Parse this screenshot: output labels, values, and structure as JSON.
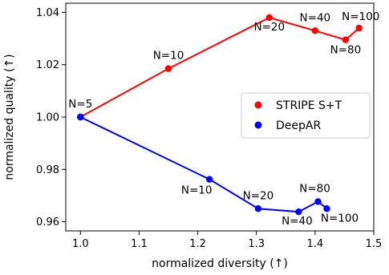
{
  "chart_data": {
    "type": "line",
    "xlabel": "normalized diversity (↑)",
    "ylabel": "normalized quality (↑)",
    "xlim": [
      0.975,
      1.5
    ],
    "ylim": [
      0.9565,
      1.0435
    ],
    "xticks": [
      1.0,
      1.1,
      1.2,
      1.3,
      1.4,
      1.5
    ],
    "xtick_labels": [
      "1.0",
      "1.1",
      "1.2",
      "1.3",
      "1.4",
      "1.5"
    ],
    "yticks": [
      0.96,
      0.98,
      1.0,
      1.02,
      1.04
    ],
    "ytick_labels": [
      "0.96",
      "0.98",
      "1.00",
      "1.02",
      "1.04"
    ],
    "grid": false,
    "legend_position": "center-right",
    "series": [
      {
        "name": "STRIPE S+T",
        "color": "#ff0000",
        "points": [
          {
            "x": 1.0,
            "y": 1.0,
            "label": "N=5"
          },
          {
            "x": 1.15,
            "y": 1.0185,
            "label": "N=10"
          },
          {
            "x": 1.322,
            "y": 1.038,
            "label": "N=20"
          },
          {
            "x": 1.4,
            "y": 1.033,
            "label": "N=40"
          },
          {
            "x": 1.452,
            "y": 1.0295,
            "label": "N=80"
          },
          {
            "x": 1.475,
            "y": 1.034,
            "label": "N=100"
          }
        ]
      },
      {
        "name": "DeepAR",
        "color": "#0000ff",
        "points": [
          {
            "x": 1.0,
            "y": 1.0,
            "label": ""
          },
          {
            "x": 1.22,
            "y": 0.9762,
            "label": "N=10"
          },
          {
            "x": 1.303,
            "y": 0.965,
            "label": "N=20"
          },
          {
            "x": 1.372,
            "y": 0.9638,
            "label": "N=40"
          },
          {
            "x": 1.405,
            "y": 0.9677,
            "label": "N=80"
          },
          {
            "x": 1.42,
            "y": 0.965,
            "label": "N=100"
          }
        ]
      }
    ]
  }
}
